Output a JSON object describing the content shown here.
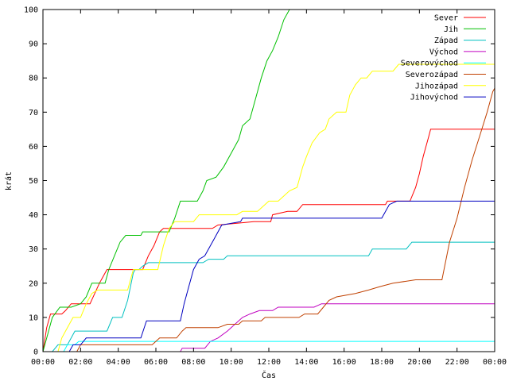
{
  "chart_data": {
    "type": "line",
    "xlabel": "Čas",
    "ylabel": "krát",
    "xlim": [
      0,
      24
    ],
    "ylim": [
      0,
      100
    ],
    "x_ticks": [
      {
        "v": 0,
        "label": "00:00"
      },
      {
        "v": 2,
        "label": "02:00"
      },
      {
        "v": 4,
        "label": "04:00"
      },
      {
        "v": 6,
        "label": "06:00"
      },
      {
        "v": 8,
        "label": "08:00"
      },
      {
        "v": 10,
        "label": "10:00"
      },
      {
        "v": 12,
        "label": "12:00"
      },
      {
        "v": 14,
        "label": "14:00"
      },
      {
        "v": 16,
        "label": "16:00"
      },
      {
        "v": 18,
        "label": "18:00"
      },
      {
        "v": 20,
        "label": "20:00"
      },
      {
        "v": 22,
        "label": "22:00"
      },
      {
        "v": 24,
        "label": "00:00"
      }
    ],
    "y_ticks": [
      {
        "v": 0,
        "label": "0"
      },
      {
        "v": 10,
        "label": "10"
      },
      {
        "v": 20,
        "label": "20"
      },
      {
        "v": 30,
        "label": "30"
      },
      {
        "v": 40,
        "label": "40"
      },
      {
        "v": 50,
        "label": "50"
      },
      {
        "v": 60,
        "label": "60"
      },
      {
        "v": 70,
        "label": "70"
      },
      {
        "v": 80,
        "label": "80"
      },
      {
        "v": 90,
        "label": "90"
      },
      {
        "v": 100,
        "label": "100"
      }
    ],
    "grid": false,
    "legend_position": "top-right",
    "series": [
      {
        "name": "Sever",
        "color": "#ff0000",
        "points": [
          [
            0,
            0
          ],
          [
            0.2,
            7
          ],
          [
            0.4,
            11
          ],
          [
            1.0,
            11
          ],
          [
            1.2,
            12
          ],
          [
            1.5,
            14
          ],
          [
            2.5,
            14
          ],
          [
            3.0,
            20
          ],
          [
            3.4,
            24
          ],
          [
            4.5,
            24
          ],
          [
            5.3,
            24
          ],
          [
            5.6,
            28
          ],
          [
            5.9,
            31
          ],
          [
            6.2,
            35
          ],
          [
            6.4,
            36
          ],
          [
            9.0,
            36
          ],
          [
            9.3,
            37
          ],
          [
            11.2,
            38
          ],
          [
            12.1,
            38
          ],
          [
            12.2,
            40
          ],
          [
            13.0,
            41
          ],
          [
            13.5,
            41
          ],
          [
            13.8,
            43
          ],
          [
            17.0,
            43
          ],
          [
            18.2,
            43
          ],
          [
            18.3,
            44
          ],
          [
            19.5,
            44
          ],
          [
            19.8,
            48
          ],
          [
            20.0,
            52
          ],
          [
            20.2,
            57
          ],
          [
            20.5,
            63
          ],
          [
            20.6,
            65
          ],
          [
            24,
            65
          ]
        ]
      },
      {
        "name": "Jih",
        "color": "#00c000",
        "points": [
          [
            0,
            0
          ],
          [
            0.3,
            6
          ],
          [
            0.5,
            10
          ],
          [
            0.9,
            13
          ],
          [
            1.5,
            13
          ],
          [
            2.0,
            14
          ],
          [
            2.3,
            16
          ],
          [
            2.6,
            20
          ],
          [
            3.3,
            20
          ],
          [
            3.5,
            24
          ],
          [
            3.8,
            28
          ],
          [
            4.1,
            32
          ],
          [
            4.4,
            34
          ],
          [
            5.2,
            34
          ],
          [
            5.3,
            35
          ],
          [
            6.7,
            35
          ],
          [
            7.0,
            39
          ],
          [
            7.3,
            44
          ],
          [
            8.2,
            44
          ],
          [
            8.5,
            47
          ],
          [
            8.7,
            50
          ],
          [
            9.2,
            51
          ],
          [
            9.6,
            54
          ],
          [
            10.0,
            58
          ],
          [
            10.4,
            62
          ],
          [
            10.6,
            66
          ],
          [
            11.0,
            68
          ],
          [
            11.3,
            74
          ],
          [
            11.6,
            80
          ],
          [
            11.9,
            85
          ],
          [
            12.2,
            88
          ],
          [
            12.5,
            92
          ],
          [
            12.8,
            97
          ],
          [
            13.1,
            100
          ]
        ]
      },
      {
        "name": "Západ",
        "color": "#00c0c0",
        "points": [
          [
            0,
            0
          ],
          [
            0.5,
            0
          ],
          [
            0.8,
            2
          ],
          [
            1.3,
            2
          ],
          [
            1.7,
            6
          ],
          [
            3.4,
            6
          ],
          [
            3.7,
            10
          ],
          [
            4.2,
            10
          ],
          [
            4.5,
            15
          ],
          [
            4.8,
            23
          ],
          [
            4.9,
            24
          ],
          [
            5.1,
            24
          ],
          [
            5.3,
            25
          ],
          [
            5.6,
            26
          ],
          [
            8.5,
            26
          ],
          [
            8.8,
            27
          ],
          [
            9.6,
            27
          ],
          [
            9.8,
            28
          ],
          [
            17.3,
            28
          ],
          [
            17.5,
            30
          ],
          [
            19.3,
            30
          ],
          [
            19.6,
            32
          ],
          [
            24,
            32
          ]
        ]
      },
      {
        "name": "Východ",
        "color": "#c000c0",
        "points": [
          [
            0,
            0
          ],
          [
            7.3,
            0
          ],
          [
            7.4,
            1
          ],
          [
            8.6,
            1
          ],
          [
            8.9,
            3
          ],
          [
            9.3,
            4
          ],
          [
            9.8,
            6
          ],
          [
            10.2,
            8
          ],
          [
            10.6,
            10
          ],
          [
            11.0,
            11
          ],
          [
            11.5,
            12
          ],
          [
            12.2,
            12
          ],
          [
            12.5,
            13
          ],
          [
            14.4,
            13
          ],
          [
            14.8,
            14
          ],
          [
            24,
            14
          ]
        ]
      },
      {
        "name": "Severovýchod",
        "color": "#00ffff",
        "points": [
          [
            0,
            0
          ],
          [
            1.1,
            0
          ],
          [
            1.3,
            2
          ],
          [
            1.7,
            2
          ],
          [
            1.9,
            3
          ],
          [
            24,
            3
          ]
        ]
      },
      {
        "name": "Severozápad",
        "color": "#c04000",
        "points": [
          [
            0,
            0
          ],
          [
            1.8,
            0
          ],
          [
            2.0,
            2
          ],
          [
            5.8,
            2
          ],
          [
            6.2,
            4
          ],
          [
            7.1,
            4
          ],
          [
            7.4,
            6
          ],
          [
            7.6,
            7
          ],
          [
            9.3,
            7
          ],
          [
            9.8,
            8
          ],
          [
            10.4,
            8
          ],
          [
            10.6,
            9
          ],
          [
            11.6,
            9
          ],
          [
            11.8,
            10
          ],
          [
            13.6,
            10
          ],
          [
            13.9,
            11
          ],
          [
            14.6,
            11
          ],
          [
            14.9,
            13
          ],
          [
            15.2,
            15
          ],
          [
            15.6,
            16
          ],
          [
            16.6,
            17
          ],
          [
            17.3,
            18
          ],
          [
            17.9,
            19
          ],
          [
            18.6,
            20
          ],
          [
            19.8,
            21
          ],
          [
            21.2,
            21
          ],
          [
            21.6,
            32
          ],
          [
            22.0,
            39
          ],
          [
            22.4,
            48
          ],
          [
            22.8,
            56
          ],
          [
            23.2,
            63
          ],
          [
            23.6,
            70
          ],
          [
            23.9,
            76
          ],
          [
            24,
            77
          ]
        ]
      },
      {
        "name": "Jihozápad",
        "color": "#ffff00",
        "points": [
          [
            0,
            0
          ],
          [
            0.8,
            0
          ],
          [
            1.0,
            4
          ],
          [
            1.3,
            7
          ],
          [
            1.6,
            10
          ],
          [
            2.0,
            10
          ],
          [
            2.3,
            14
          ],
          [
            2.6,
            17
          ],
          [
            2.9,
            18
          ],
          [
            4.5,
            18
          ],
          [
            4.8,
            24
          ],
          [
            6.1,
            24
          ],
          [
            6.4,
            31
          ],
          [
            6.7,
            36
          ],
          [
            7.0,
            38
          ],
          [
            8.0,
            38
          ],
          [
            8.3,
            40
          ],
          [
            10.3,
            40
          ],
          [
            10.6,
            41
          ],
          [
            11.4,
            41
          ],
          [
            11.6,
            42
          ],
          [
            12.0,
            44
          ],
          [
            12.5,
            44
          ],
          [
            13.1,
            47
          ],
          [
            13.5,
            48
          ],
          [
            13.8,
            54
          ],
          [
            14.0,
            57
          ],
          [
            14.3,
            61
          ],
          [
            14.7,
            64
          ],
          [
            15.0,
            65
          ],
          [
            15.2,
            68
          ],
          [
            15.6,
            70
          ],
          [
            16.1,
            70
          ],
          [
            16.3,
            75
          ],
          [
            16.6,
            78
          ],
          [
            16.9,
            80
          ],
          [
            17.2,
            80
          ],
          [
            17.5,
            82
          ],
          [
            18.6,
            82
          ],
          [
            18.9,
            84
          ],
          [
            24,
            84
          ]
        ]
      },
      {
        "name": "Jihovýchod",
        "color": "#0000c0",
        "points": [
          [
            0,
            0
          ],
          [
            1.4,
            0
          ],
          [
            1.6,
            2
          ],
          [
            2.0,
            2
          ],
          [
            2.3,
            4
          ],
          [
            5.2,
            4
          ],
          [
            5.5,
            9
          ],
          [
            7.3,
            9
          ],
          [
            7.5,
            14
          ],
          [
            7.7,
            18
          ],
          [
            8.0,
            24
          ],
          [
            8.3,
            27
          ],
          [
            8.6,
            28
          ],
          [
            9.1,
            33
          ],
          [
            9.5,
            37
          ],
          [
            10.5,
            38
          ],
          [
            10.6,
            39
          ],
          [
            18.0,
            39
          ],
          [
            18.4,
            43
          ],
          [
            18.8,
            44
          ],
          [
            24,
            44
          ]
        ]
      }
    ]
  }
}
